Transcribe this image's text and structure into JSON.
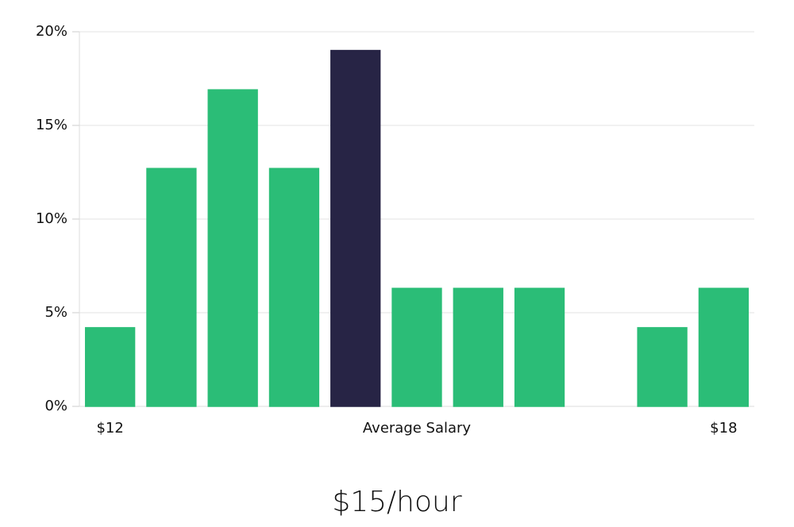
{
  "chart_data": {
    "type": "bar",
    "title": "$15/hour",
    "x_label": "Average Salary",
    "categories": [
      "$12",
      null,
      null,
      null,
      null,
      null,
      null,
      null,
      null,
      null,
      "$18"
    ],
    "values": [
      4.2,
      12.7,
      16.9,
      12.7,
      19.0,
      6.3,
      6.3,
      6.3,
      0,
      4.2,
      6.3
    ],
    "colors": [
      "#2bbd77",
      "#2bbd77",
      "#2bbd77",
      "#2bbd77",
      "#272445",
      "#2bbd77",
      "#2bbd77",
      "#2bbd77",
      "#2bbd77",
      "#2bbd77",
      "#2bbd77"
    ],
    "ylim": [
      0,
      20
    ],
    "yticks": [
      {
        "value": 0,
        "label": "0%"
      },
      {
        "value": 5,
        "label": "5%"
      },
      {
        "value": 10,
        "label": "10%"
      },
      {
        "value": 15,
        "label": "15%"
      },
      {
        "value": 20,
        "label": "20%"
      }
    ],
    "grid": true
  }
}
